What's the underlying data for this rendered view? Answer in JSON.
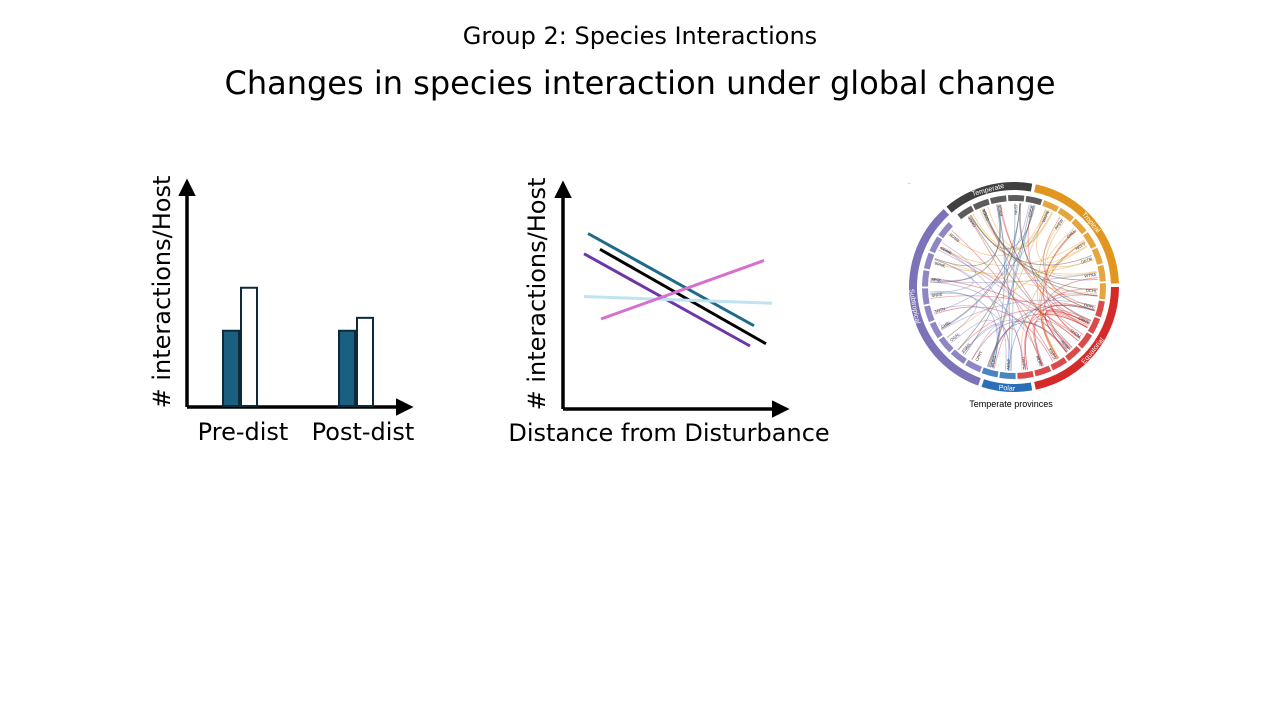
{
  "slide": {
    "subtitle": "Group 2: Species Interactions",
    "title": "Changes in species interaction under global change"
  },
  "bar_diagram": {
    "y_label": "# interactions/Host",
    "groups": [
      {
        "label": "Pre-dist",
        "values": [
          0.35,
          0.55
        ]
      },
      {
        "label": "Post-dist",
        "values": [
          0.35,
          0.41
        ]
      }
    ],
    "series_colors": [
      "#1a5f80",
      "#ffffff"
    ],
    "ymax": 1.0
  },
  "line_diagram": {
    "y_label": "# interactions/Host",
    "x_label": "Distance from Disturbance",
    "lines": [
      {
        "color": "#1e6a8a",
        "start": 0.78,
        "end": 0.37
      },
      {
        "color": "#000000",
        "start": 0.71,
        "end": 0.29
      },
      {
        "color": "#6b36a6",
        "start": 0.69,
        "end": 0.28
      },
      {
        "color": "#bfe3f2",
        "start": 0.5,
        "end": 0.47
      },
      {
        "color": "#d670cc",
        "start": 0.4,
        "end": 0.66
      }
    ]
  },
  "chord_figure": {
    "caption": "Temperate provinces",
    "regions": [
      {
        "label": "Temperate",
        "color": "#404040"
      },
      {
        "label": "Tropical",
        "color": "#e0961f"
      },
      {
        "label": "Equatorial",
        "color": "#d42a2a"
      },
      {
        "label": "Polar",
        "color": "#2a6fb6"
      },
      {
        "label": "Subtropical",
        "color": "#7b72b8"
      }
    ],
    "node_labels": [
      "GKNT",
      "GOEA",
      "PNCA",
      "NKST",
      "COCA",
      "WAPN",
      "AKEW",
      "CHLL",
      "NCLV",
      "DKTM",
      "WTNA",
      "OCHL",
      "ODFL",
      "CNHV",
      "SHDM",
      "AGBP",
      "KWPN",
      "MDRI",
      "DWPC",
      "ARNP",
      "ROPG",
      "CPRT",
      "FSAN",
      "OGAL",
      "CHBL",
      "TNTN",
      "SNRE",
      "AFQL",
      "SRNE",
      "ODMB",
      "BDMB"
    ]
  }
}
